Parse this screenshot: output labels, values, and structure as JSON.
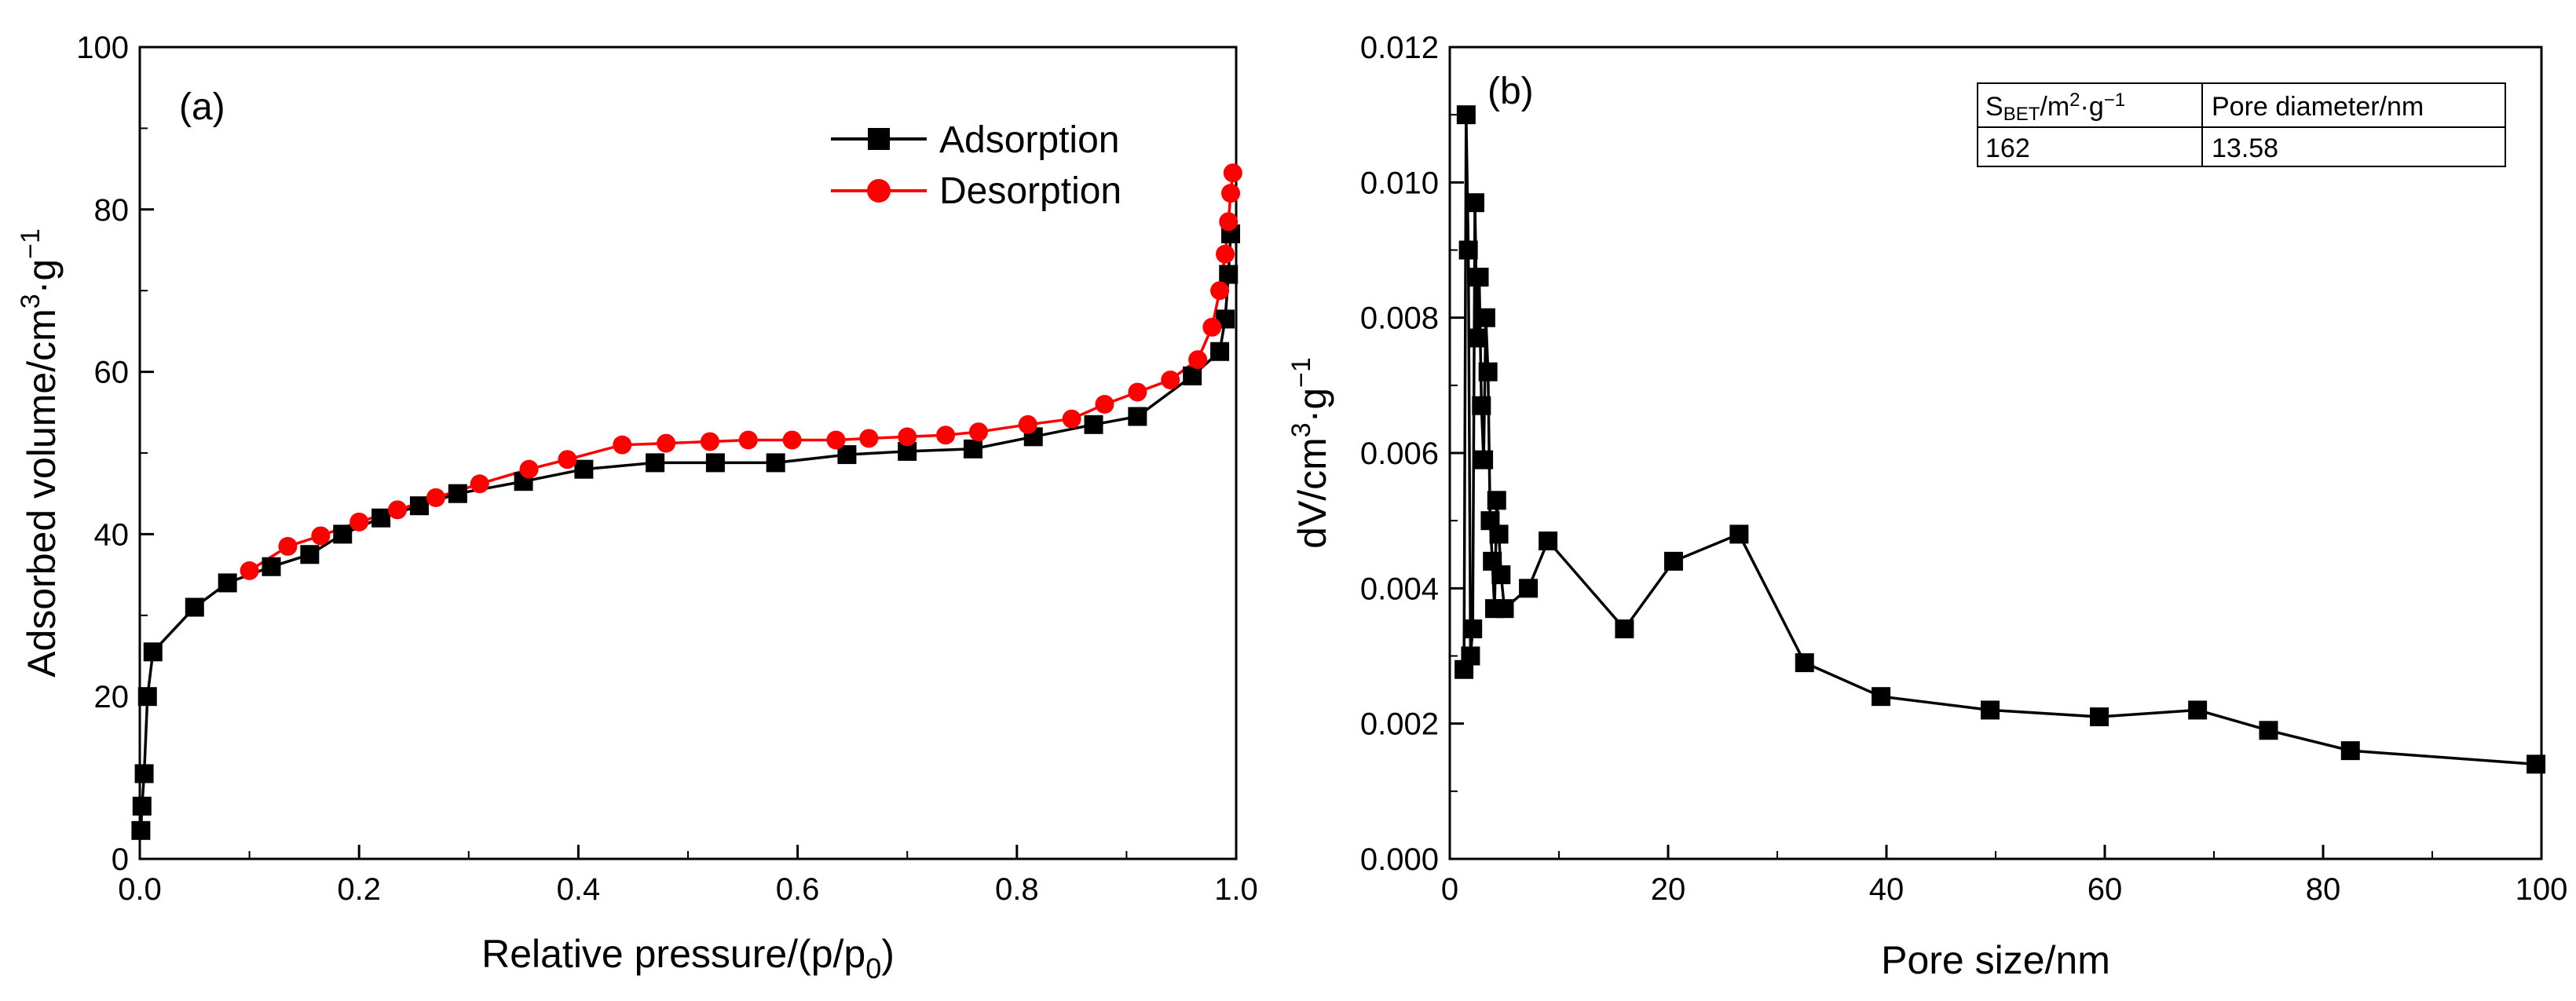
{
  "chart_data": [
    {
      "panel": "(a)",
      "type": "line",
      "xlabel": "Relative pressure/(p/p0)",
      "ylabel": "Adsorbed volume/cm3·g−1",
      "xlim": [
        0.0,
        1.0
      ],
      "ylim": [
        0,
        100
      ],
      "xticks": [
        "0.0",
        "0.2",
        "0.4",
        "0.6",
        "0.8",
        "1.0"
      ],
      "yticks": [
        "0",
        "20",
        "40",
        "60",
        "80",
        "100"
      ],
      "legend": [
        "Adsorption",
        "Desorption"
      ],
      "series": [
        {
          "name": "Adsorption",
          "color": "#000000",
          "marker": "square",
          "x": [
            0.001,
            0.002,
            0.004,
            0.007,
            0.012,
            0.05,
            0.08,
            0.12,
            0.155,
            0.185,
            0.22,
            0.255,
            0.29,
            0.35,
            0.405,
            0.47,
            0.525,
            0.58,
            0.645,
            0.7,
            0.76,
            0.815,
            0.87,
            0.91,
            0.96,
            0.985,
            0.99,
            0.993,
            0.995
          ],
          "y": [
            3.5,
            6.5,
            10.5,
            20,
            25.5,
            31,
            34,
            36,
            37.5,
            40,
            42,
            43.5,
            45,
            46.5,
            48,
            48.8,
            48.8,
            48.8,
            49.8,
            50.2,
            50.5,
            52,
            53.5,
            54.5,
            59.5,
            62.5,
            66.5,
            72,
            77
          ]
        },
        {
          "name": "Desorption",
          "color": "#ff0000",
          "marker": "circle",
          "x": [
            0.1,
            0.135,
            0.165,
            0.2,
            0.235,
            0.27,
            0.31,
            0.355,
            0.39,
            0.44,
            0.48,
            0.52,
            0.555,
            0.595,
            0.635,
            0.665,
            0.7,
            0.735,
            0.765,
            0.81,
            0.85,
            0.88,
            0.91,
            0.94,
            0.965,
            0.978,
            0.985,
            0.99,
            0.993,
            0.995,
            0.997
          ],
          "y": [
            35.5,
            38.5,
            39.8,
            41.5,
            43,
            44.5,
            46.2,
            48,
            49.2,
            51,
            51.2,
            51.4,
            51.6,
            51.6,
            51.6,
            51.8,
            52,
            52.2,
            52.6,
            53.5,
            54.2,
            56,
            57.5,
            59,
            61.5,
            65.5,
            70,
            74.5,
            78.5,
            82,
            84.5
          ]
        }
      ]
    },
    {
      "panel": "(b)",
      "type": "line",
      "xlabel": "Pore size/nm",
      "ylabel": "dV/cm3·g−1",
      "xlim": [
        0,
        100
      ],
      "ylim": [
        0.0,
        0.012
      ],
      "xticks": [
        "0",
        "20",
        "40",
        "60",
        "80",
        "100"
      ],
      "yticks": [
        "0.000",
        "0.002",
        "0.004",
        "0.006",
        "0.008",
        "0.010",
        "0.012"
      ],
      "series": [
        {
          "name": "dV",
          "color": "#000000",
          "marker": "square",
          "x": [
            1.3,
            1.5,
            1.7,
            1.9,
            2.1,
            2.3,
            2.5,
            2.7,
            2.9,
            3.1,
            3.3,
            3.5,
            3.7,
            3.9,
            4.1,
            4.3,
            4.5,
            4.7,
            5.0,
            7.2,
            9.0,
            16.0,
            20.5,
            26.5,
            32.5,
            39.5,
            49.5,
            59.5,
            68.5,
            75.0,
            82.5,
            99.5
          ],
          "y": [
            0.0028,
            0.011,
            0.009,
            0.003,
            0.0034,
            0.0097,
            0.0077,
            0.0086,
            0.0067,
            0.0059,
            0.008,
            0.0072,
            0.005,
            0.0044,
            0.0037,
            0.0053,
            0.0048,
            0.0042,
            0.0037,
            0.004,
            0.0047,
            0.0034,
            0.0044,
            0.0048,
            0.0029,
            0.0024,
            0.0022,
            0.0021,
            0.0022,
            0.0019,
            0.0016,
            0.0014
          ]
        }
      ],
      "inset_table": {
        "headers": [
          "SBET/m2·g−1",
          "Pore diameter/nm"
        ],
        "row": [
          "162",
          "13.58"
        ]
      }
    }
  ],
  "text": {
    "a_label": "(a)",
    "b_label": "(b)",
    "a_xlabel_main": "Relative pressure/(p/p",
    "a_xlabel_sub": "0",
    "a_xlabel_end": ")",
    "a_ylabel_main": "Adsorbed volume/cm",
    "a_ylabel_sup1": "3",
    "a_ylabel_mid": "·g",
    "a_ylabel_sup2": "−1",
    "b_xlabel": "Pore size/nm",
    "b_ylabel_main": "dV/cm",
    "b_ylabel_sup1": "3",
    "b_ylabel_mid": "·g",
    "b_ylabel_sup2": "−1",
    "legend_ads": "Adsorption",
    "legend_des": "Desorption",
    "tbl_h1_s": "S",
    "tbl_h1_sub": "BET",
    "tbl_h1_rest": "/m",
    "tbl_h1_sup1": "2",
    "tbl_h1_mid": "·g",
    "tbl_h1_sup2": "−1",
    "tbl_h2": "Pore diameter/nm",
    "tbl_v1": "162",
    "tbl_v2": "13.58"
  }
}
